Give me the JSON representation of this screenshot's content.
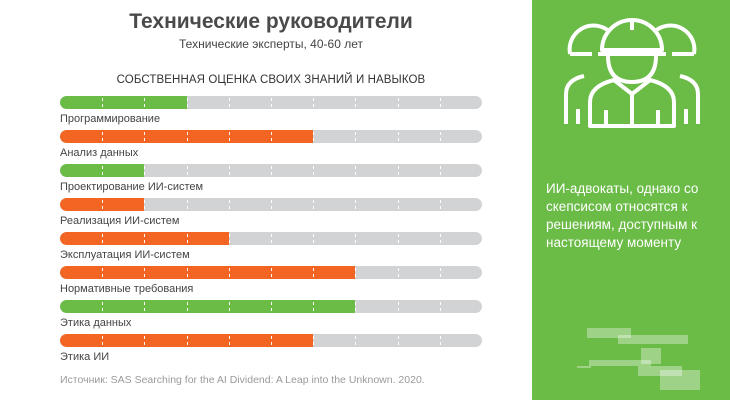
{
  "header": {
    "title": "Технические руководители",
    "subtitle": "Технические эксперты, 40-60 лет"
  },
  "chart_data": {
    "type": "bar",
    "orientation": "horizontal",
    "title": "СОБСТВЕННАЯ ОЦЕНКА СВОИХ ЗНАНИЙ И НАВЫКОВ",
    "xlim": [
      0,
      10
    ],
    "categories": [
      "Программирование",
      "Анализ данных",
      "Проектирование ИИ-систем",
      "Реализация ИИ-систем",
      "Эксплуатация ИИ-систем",
      "Нормативные требования",
      "Этика данных",
      "Этика ИИ"
    ],
    "values": [
      3,
      6,
      2,
      2,
      4,
      7,
      7,
      6
    ],
    "colors": [
      "#6bbb47",
      "#f26522",
      "#6bbb47",
      "#f26522",
      "#f26522",
      "#f26522",
      "#6bbb47",
      "#f26522"
    ],
    "track_color": "#d2d3d5"
  },
  "source": "Источник: SAS Searching for the AI Dividend: A Leap into the Unknown. 2020.",
  "panel": {
    "icon": "engineers-icon",
    "text": "ИИ-адвокаты, однако со скепсисом относятся к решениям, доступным к настоящему моменту",
    "color": "#6bbb47"
  }
}
